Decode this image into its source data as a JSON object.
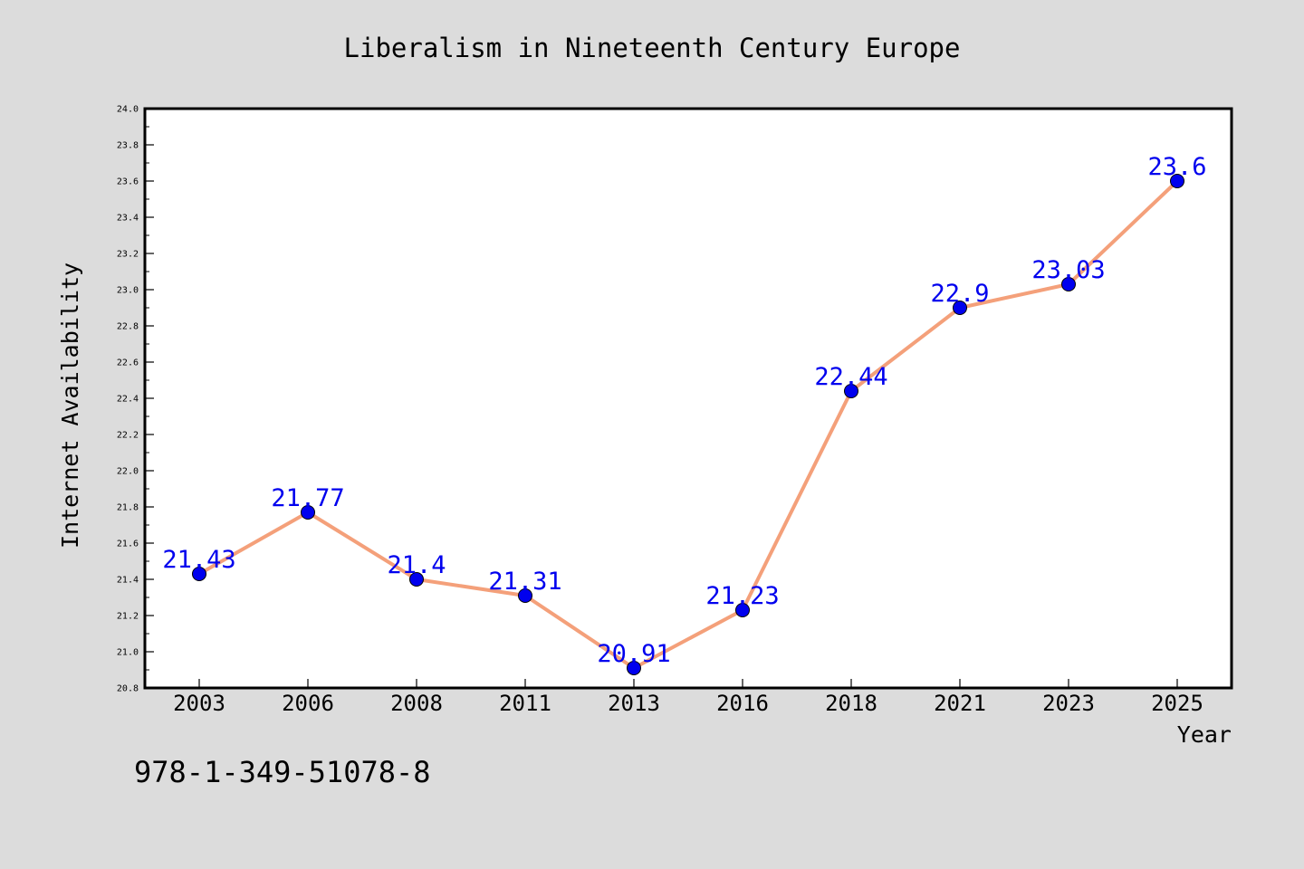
{
  "chart_data": {
    "type": "line",
    "title": "Liberalism in Nineteenth Century Europe",
    "xlabel": "Year",
    "ylabel": "Internet Availability",
    "categories": [
      "2003",
      "2006",
      "2008",
      "2011",
      "2013",
      "2016",
      "2018",
      "2021",
      "2023",
      "2025"
    ],
    "values": [
      21.43,
      21.77,
      21.4,
      21.31,
      20.91,
      21.23,
      22.44,
      22.9,
      23.03,
      23.6
    ],
    "data_labels": [
      "21.43",
      "21.77",
      "21.4",
      "21.31",
      "20.91",
      "21.23",
      "22.44",
      "22.9",
      "23.03",
      "23.6"
    ],
    "ylim": [
      20.8,
      24.0
    ],
    "yticks": [
      "20.8",
      "21.0",
      "21.2",
      "21.4",
      "21.6",
      "21.8",
      "22.0",
      "22.2",
      "22.4",
      "22.6",
      "22.8",
      "23.0",
      "23.2",
      "23.4",
      "23.6",
      "23.8",
      "24.0"
    ],
    "grid": false,
    "legend": "none",
    "line_color": "#f4a07a",
    "marker_color": "#0000ee",
    "label_color": "#0000ee"
  },
  "footer": {
    "isbn": "978-1-349-51078-8"
  },
  "colors": {
    "background": "#dcdcdc",
    "plot_background": "#ffffff"
  }
}
